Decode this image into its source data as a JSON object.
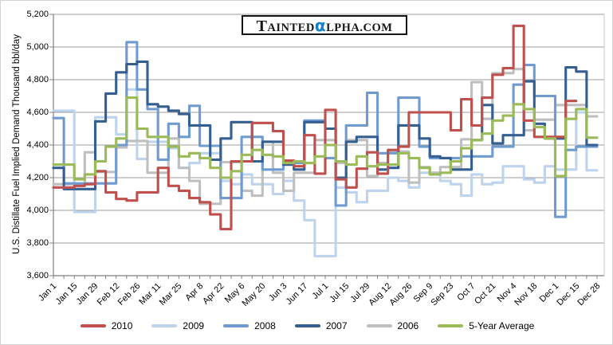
{
  "logo": {
    "t": "T",
    "ainted": "AINTED",
    "alpha": "α",
    "lpha": "LPHA",
    "dotcom": ".COM",
    "alpha_color": "#1283C8"
  },
  "chart_data": {
    "type": "line",
    "title": "",
    "xlabel": "",
    "ylabel": "U.S. Distillate Fuel Implied Demand Thousand bbl/day",
    "ylim": [
      3600,
      5200
    ],
    "ytick_step": 200,
    "ytick_labels": [
      "3,600",
      "3,800",
      "4,000",
      "4,200",
      "4,400",
      "4,600",
      "4,800",
      "5,000",
      "5,200"
    ],
    "x_tick_labels": [
      "Jan 1",
      "Jan 15",
      "Jan 29",
      "Feb 12",
      "Feb 26",
      "Mar 11",
      "Mar 25",
      "Apr 8",
      "Apr 22",
      "May 6",
      "May 20",
      "Jun 3",
      "Jun 17",
      "Jul 1",
      "Jul 15",
      "Jul 29",
      "Aug 12",
      "Aug 26",
      "Sep 9",
      "Sep 23",
      "Oct 7",
      "Oct 21",
      "Nov 4",
      "Nov 18",
      "Dec 1",
      "Dec 15",
      "Dec 28"
    ],
    "x_unit": "weekly",
    "grid": "horizontal",
    "legend_position": "bottom",
    "series": [
      {
        "name": "2010",
        "color": "#C0504D",
        "values": [
          4140,
          4140,
          4150,
          4160,
          4240,
          4110,
          4070,
          4060,
          4110,
          4110,
          4260,
          4150,
          4120,
          4075,
          4050,
          3975,
          3885,
          4300,
          4300,
          4535,
          4535,
          4485,
          4305,
          4270,
          4460,
          4225,
          4615,
          4190,
          4140,
          4255,
          4355,
          4225,
          4370,
          4390,
          4600,
          4600,
          4600,
          4600,
          4490,
          4680,
          4520,
          4690,
          4830,
          4870,
          5130,
          4550,
          4450,
          4450,
          4450,
          4670,
          null,
          null
        ]
      },
      {
        "name": "2009",
        "color": "#BED3EC",
        "values": [
          4610,
          4610,
          3990,
          3990,
          4570,
          4570,
          4465,
          4740,
          4315,
          4420,
          4420,
          4380,
          4260,
          4290,
          4350,
          4350,
          4180,
          4160,
          4220,
          4160,
          4160,
          4100,
          4180,
          4060,
          3940,
          3720,
          3720,
          4140,
          4110,
          4050,
          4120,
          4120,
          4200,
          4180,
          4140,
          4230,
          4230,
          4180,
          4160,
          4090,
          4220,
          4160,
          4170,
          4270,
          4270,
          4190,
          4170,
          4270,
          4250,
          4250,
          4600,
          4245
        ]
      },
      {
        "name": "2008",
        "color": "#6F9BD1",
        "values": [
          4565,
          4165,
          4165,
          4165,
          4165,
          4165,
          4400,
          5030,
          4740,
          4620,
          4310,
          4530,
          4450,
          4640,
          4395,
          4395,
          4075,
          4075,
          4450,
          4450,
          4250,
          4250,
          4280,
          4290,
          4550,
          4550,
          4320,
          4030,
          4520,
          4520,
          4720,
          4350,
          4350,
          4690,
          4690,
          4390,
          4320,
          4320,
          4320,
          4330,
          4330,
          4330,
          4390,
          4390,
          4770,
          4890,
          4700,
          4700,
          3960,
          4370,
          4390,
          4390
        ]
      },
      {
        "name": "2007",
        "color": "#365F91",
        "values": [
          4260,
          4130,
          4130,
          4130,
          4545,
          4715,
          4845,
          4895,
          4910,
          4650,
          4635,
          4610,
          4590,
          4520,
          4520,
          4310,
          4440,
          4540,
          4540,
          4300,
          4420,
          4420,
          4280,
          4250,
          4540,
          4540,
          4500,
          4200,
          4420,
          4450,
          4450,
          4250,
          4260,
          4520,
          4520,
          4440,
          4330,
          4320,
          4250,
          4250,
          4430,
          4645,
          4410,
          4460,
          4460,
          4790,
          4530,
          4440,
          4440,
          4875,
          4850,
          4400
        ]
      },
      {
        "name": "2006",
        "color": "#BFBFBF",
        "values": [
          4160,
          4160,
          4160,
          4355,
          4235,
          4235,
          4385,
          4425,
          4425,
          4230,
          4230,
          4440,
          4260,
          4180,
          4040,
          4040,
          4295,
          4295,
          4120,
          4090,
          4420,
          4230,
          4120,
          4230,
          4230,
          4430,
          4430,
          4290,
          4430,
          4430,
          4210,
          4290,
          4360,
          4360,
          4170,
          4265,
          4230,
          4265,
          4265,
          4435,
          4785,
          4560,
          4840,
          4840,
          4865,
          4490,
          4555,
          4555,
          4645,
          4645,
          4645,
          4575
        ]
      },
      {
        "name": "5-Year Average",
        "color": "#9BBB59",
        "values": [
          4280,
          4280,
          4190,
          4220,
          4300,
          4390,
          4440,
          4690,
          4500,
          4450,
          4450,
          4390,
          4330,
          4350,
          4320,
          4260,
          4200,
          4240,
          4340,
          4370,
          4340,
          4330,
          4290,
          4300,
          4290,
          4330,
          4400,
          4300,
          4280,
          4330,
          4270,
          4280,
          4280,
          4350,
          4320,
          4260,
          4220,
          4230,
          4300,
          4380,
          4430,
          4470,
          4550,
          4580,
          4650,
          4620,
          4510,
          4440,
          4210,
          4560,
          4620,
          4445
        ]
      }
    ]
  }
}
